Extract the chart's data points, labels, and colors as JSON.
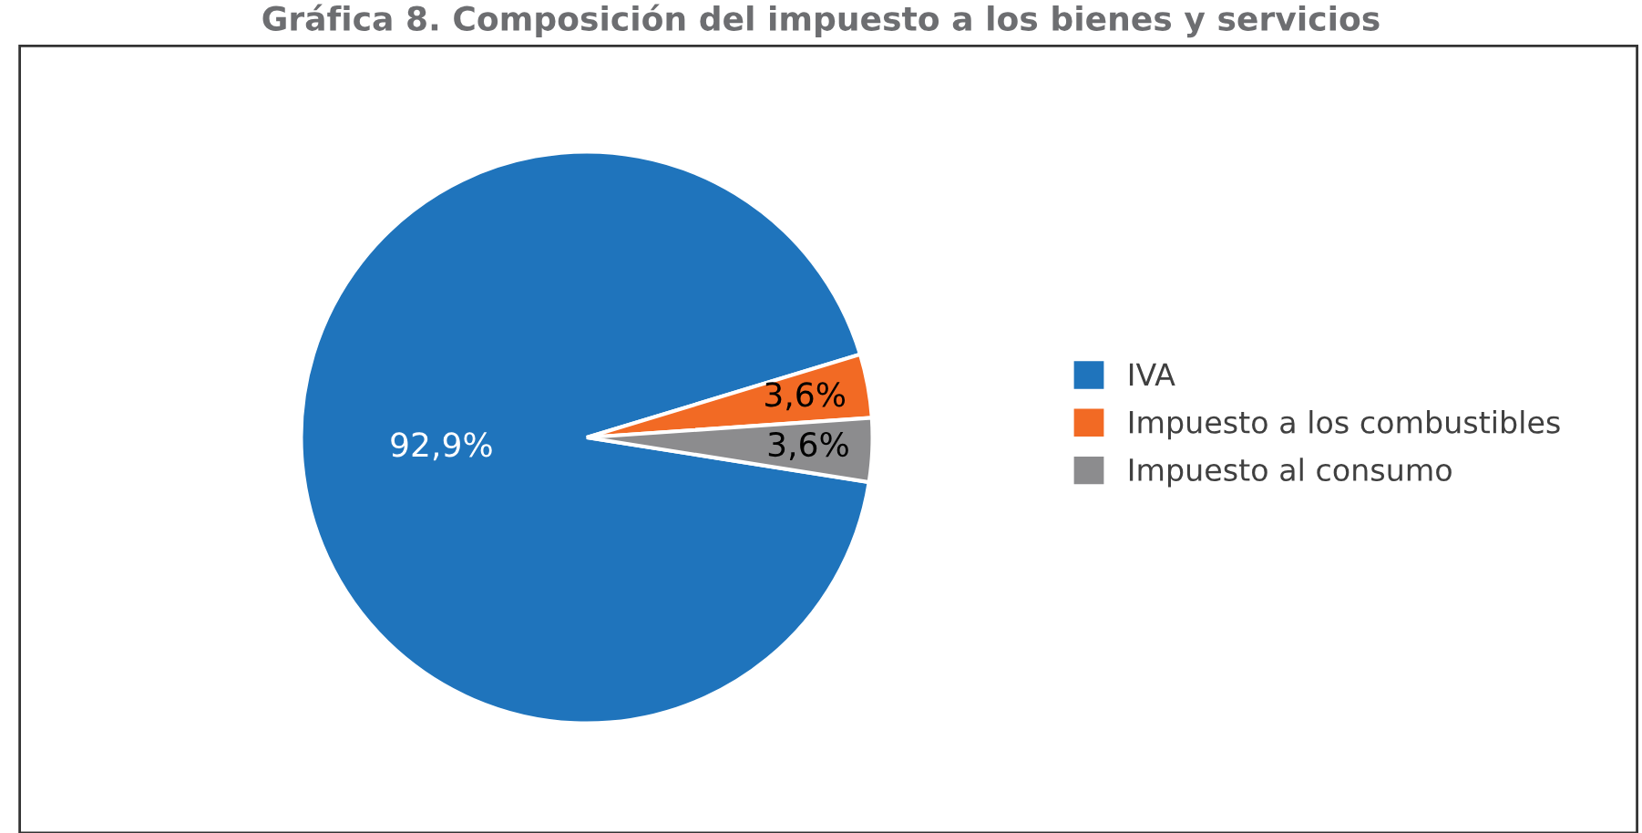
{
  "chart_data": {
    "type": "pie",
    "title": "Gráfica 8. Composición del impuesto a los bienes y servicios",
    "categories": [
      "IVA",
      "Impuesto a los combustibles",
      "Impuesto al consumo"
    ],
    "values": [
      92.9,
      3.6,
      3.6
    ],
    "value_labels": [
      "92,9%",
      "3,6%",
      "3,6%"
    ],
    "colors": [
      "#1f74bc",
      "#f26a24",
      "#8c8c8e"
    ],
    "legend": "right"
  }
}
